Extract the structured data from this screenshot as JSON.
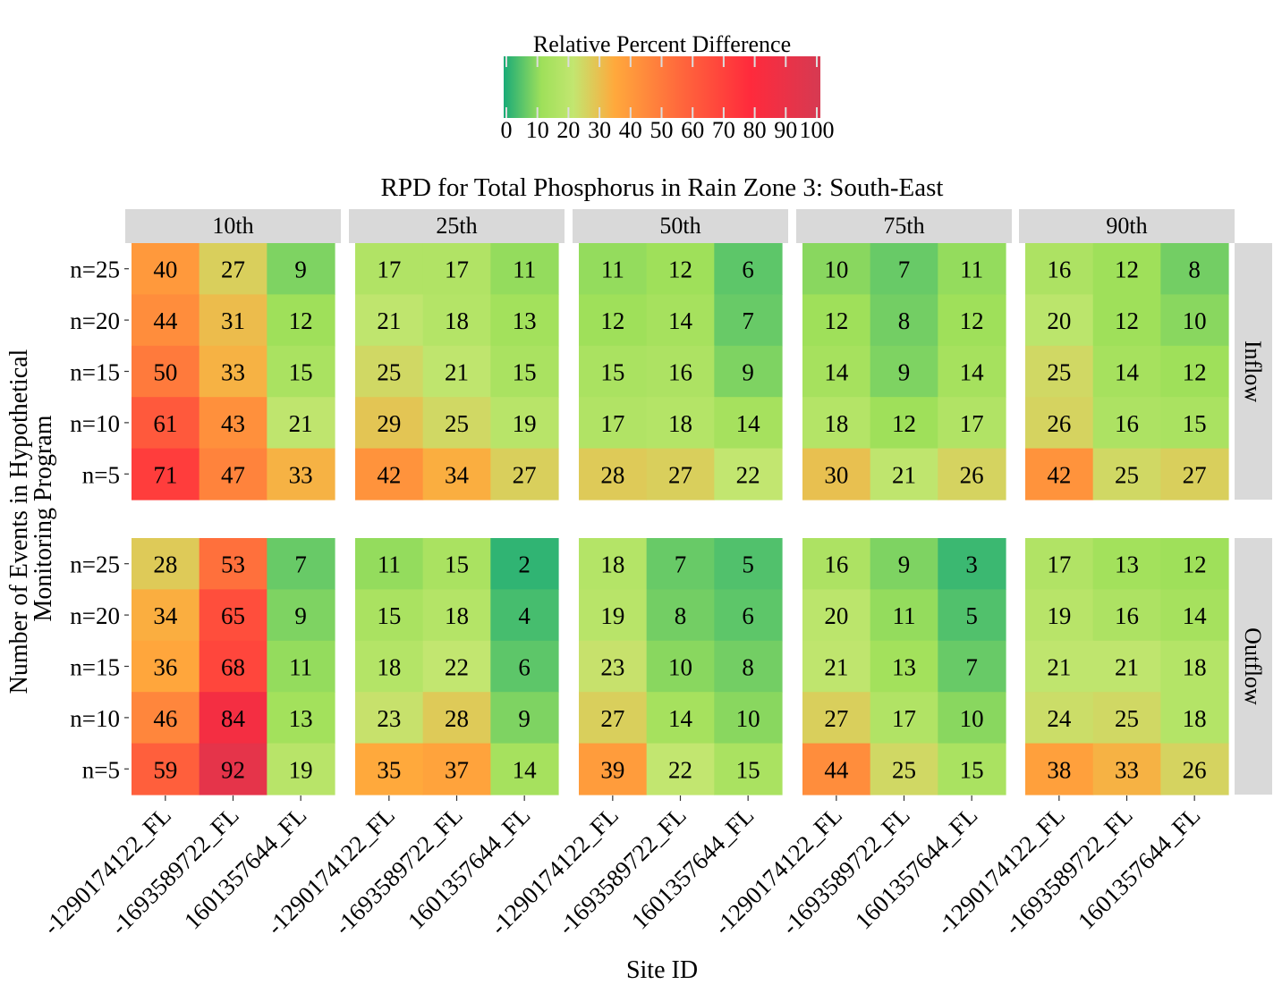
{
  "chart_data": {
    "type": "heatmap",
    "title": "RPD for Total Phosphorus in Rain Zone 3: South-East",
    "xlabel": "Site ID",
    "ylabel": [
      "Number of Events in Hypothetical",
      "Monitoring Program"
    ],
    "legend": {
      "title": "Relative Percent Difference",
      "ticks": [
        "0",
        "10",
        "20",
        "30",
        "40",
        "50",
        "60",
        "70",
        "80",
        "90",
        "100"
      ],
      "range": [
        0,
        100
      ],
      "placement": "top-center",
      "colors": [
        "#1aab78",
        "#b0e35e",
        "#ffa93c",
        "#ff2a3c",
        "#d63a52"
      ]
    },
    "column_facets": [
      "10th",
      "25th",
      "50th",
      "75th",
      "90th"
    ],
    "row_facets": [
      "Inflow",
      "Outflow"
    ],
    "sites": [
      "-1290174122_FL",
      "-1693589722_FL",
      "1601357644_FL"
    ],
    "events": [
      "n=25",
      "n=20",
      "n=15",
      "n=10",
      "n=5"
    ],
    "values": {
      "Inflow": {
        "10th": [
          [
            40,
            27,
            9
          ],
          [
            44,
            31,
            12
          ],
          [
            50,
            33,
            15
          ],
          [
            61,
            43,
            21
          ],
          [
            71,
            47,
            33
          ]
        ],
        "25th": [
          [
            17,
            17,
            11
          ],
          [
            21,
            18,
            13
          ],
          [
            25,
            21,
            15
          ],
          [
            29,
            25,
            19
          ],
          [
            42,
            34,
            27
          ]
        ],
        "50th": [
          [
            11,
            12,
            6
          ],
          [
            12,
            14,
            7
          ],
          [
            15,
            16,
            9
          ],
          [
            17,
            18,
            14
          ],
          [
            28,
            27,
            22
          ]
        ],
        "75th": [
          [
            10,
            7,
            11
          ],
          [
            12,
            8,
            12
          ],
          [
            14,
            9,
            14
          ],
          [
            18,
            12,
            17
          ],
          [
            30,
            21,
            26
          ]
        ],
        "90th": [
          [
            16,
            12,
            8
          ],
          [
            20,
            12,
            10
          ],
          [
            25,
            14,
            12
          ],
          [
            26,
            16,
            15
          ],
          [
            42,
            25,
            27
          ]
        ]
      },
      "Outflow": {
        "10th": [
          [
            28,
            53,
            7
          ],
          [
            34,
            65,
            9
          ],
          [
            36,
            68,
            11
          ],
          [
            46,
            84,
            13
          ],
          [
            59,
            92,
            19
          ]
        ],
        "25th": [
          [
            11,
            15,
            2
          ],
          [
            15,
            18,
            4
          ],
          [
            18,
            22,
            6
          ],
          [
            23,
            28,
            9
          ],
          [
            35,
            37,
            14
          ]
        ],
        "50th": [
          [
            18,
            7,
            5
          ],
          [
            19,
            8,
            6
          ],
          [
            23,
            10,
            8
          ],
          [
            27,
            14,
            10
          ],
          [
            39,
            22,
            15
          ]
        ],
        "75th": [
          [
            16,
            9,
            3
          ],
          [
            20,
            11,
            5
          ],
          [
            21,
            13,
            7
          ],
          [
            27,
            17,
            10
          ],
          [
            44,
            25,
            15
          ]
        ],
        "90th": [
          [
            17,
            13,
            12
          ],
          [
            19,
            16,
            14
          ],
          [
            21,
            21,
            18
          ],
          [
            24,
            25,
            18
          ],
          [
            38,
            33,
            26
          ]
        ]
      }
    }
  }
}
